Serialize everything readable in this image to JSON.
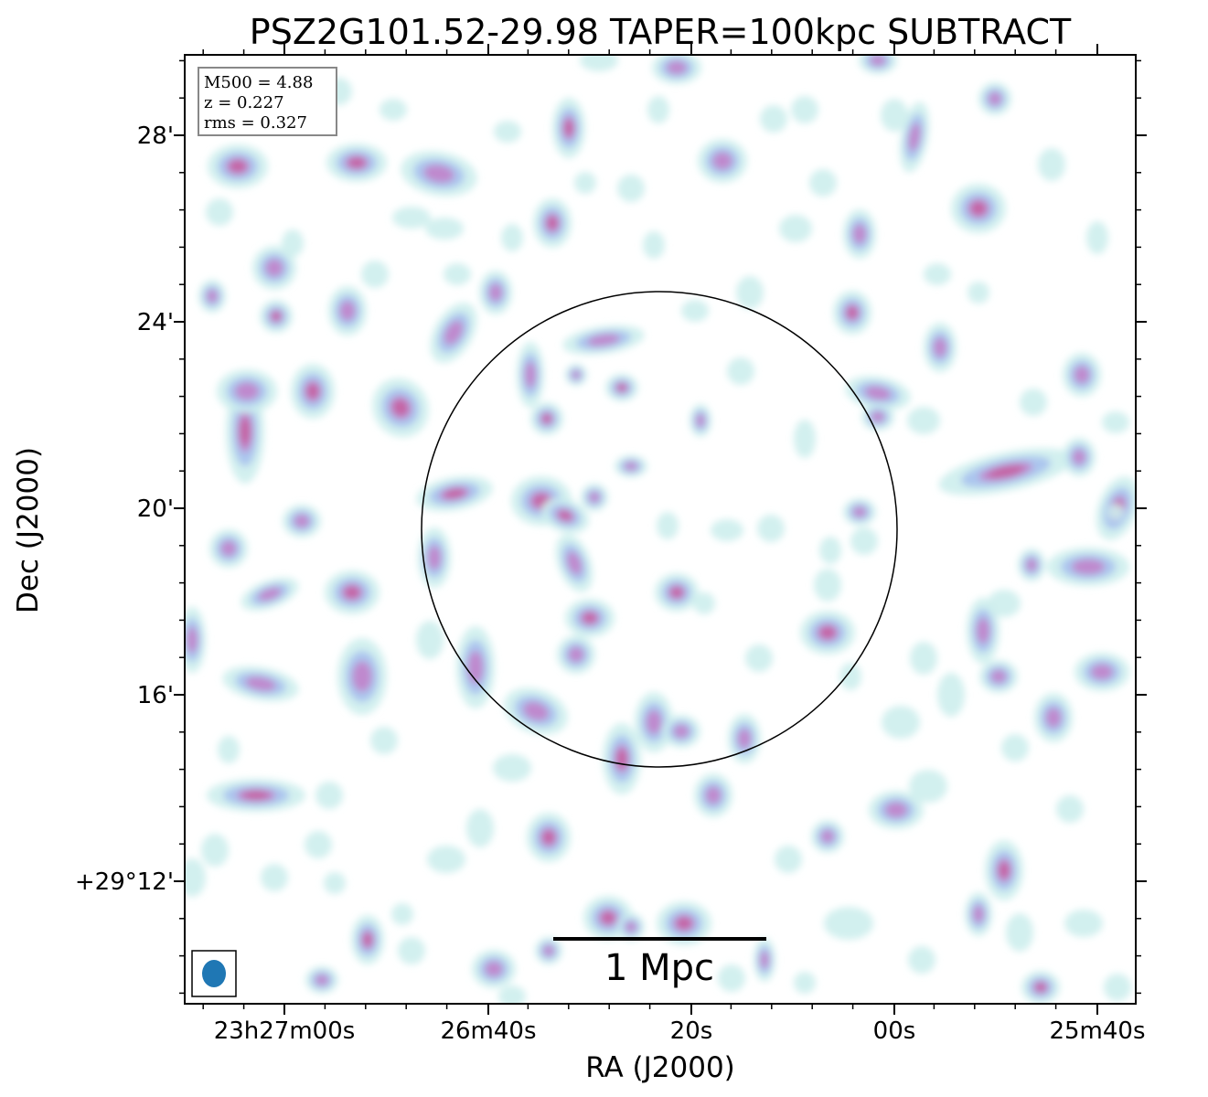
{
  "chart_data": {
    "type": "heatmap",
    "title": "PSZ2G101.52-29.98 TAPER=100kpc SUBTRACT",
    "xlabel": "RA (J2000)",
    "ylabel": "Dec (J2000)",
    "x_ticks": [
      "23h27m00s",
      "26m40s",
      "20s",
      "00s",
      "25m40s"
    ],
    "y_ticks": [
      "28'",
      "24'",
      "20'",
      "16'",
      "+29°12'"
    ],
    "info_box": [
      "M500 = 4.88",
      "z = 0.227",
      "rms = 0.327"
    ],
    "scale_bar_label": "1 Mpc",
    "colors": {
      "low": "#cdeeed",
      "mid": "#aac4ee",
      "high": "#c27ec8",
      "peak": "#c45f9e",
      "beam": "#1f77b4"
    }
  }
}
